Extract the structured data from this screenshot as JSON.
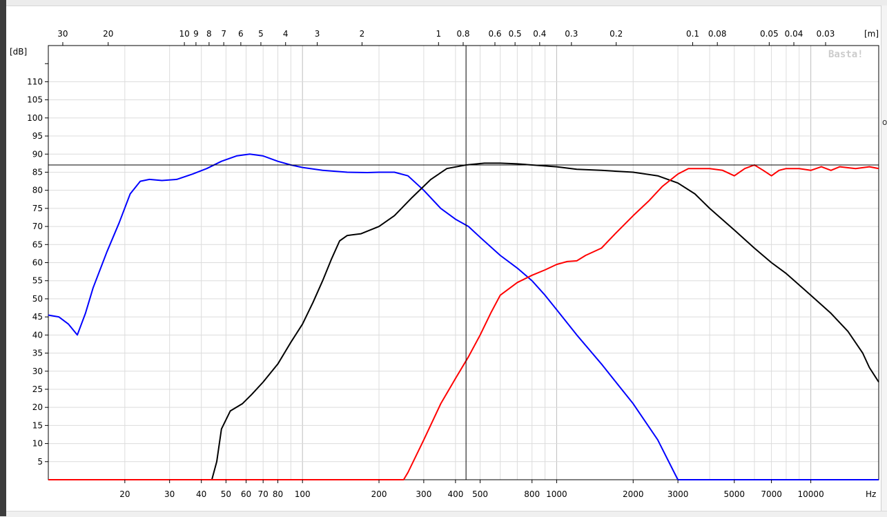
{
  "chart_data": {
    "type": "line",
    "title": "",
    "xlabel": "Hz",
    "ylabel": "[dB]",
    "top_axis_label": "[m]",
    "watermark": "Basta!",
    "x_scale": "log",
    "xlim": [
      10,
      18500
    ],
    "ylim": [
      0,
      120
    ],
    "grid": true,
    "y_ticks": [
      5,
      10,
      15,
      20,
      25,
      30,
      35,
      40,
      45,
      50,
      55,
      60,
      65,
      70,
      75,
      80,
      85,
      90,
      95,
      100,
      105,
      110
    ],
    "x_tick_labels": [
      {
        "v": 20,
        "t": "20"
      },
      {
        "v": 30,
        "t": "30"
      },
      {
        "v": 40,
        "t": "40"
      },
      {
        "v": 50,
        "t": "50"
      },
      {
        "v": 60,
        "t": "60"
      },
      {
        "v": 70,
        "t": "70"
      },
      {
        "v": 80,
        "t": "80"
      },
      {
        "v": 100,
        "t": "100"
      },
      {
        "v": 200,
        "t": "200"
      },
      {
        "v": 300,
        "t": "300"
      },
      {
        "v": 400,
        "t": "400"
      },
      {
        "v": 500,
        "t": "500"
      },
      {
        "v": 800,
        "t": "800"
      },
      {
        "v": 1000,
        "t": "1000"
      },
      {
        "v": 2000,
        "t": "2000"
      },
      {
        "v": 3000,
        "t": "3000"
      },
      {
        "v": 5000,
        "t": "5000"
      },
      {
        "v": 7000,
        "t": "7000"
      },
      {
        "v": 10000,
        "t": "10000"
      }
    ],
    "top_ticks": [
      {
        "t": "30",
        "f": 11.4
      },
      {
        "t": "20",
        "f": 17.2
      },
      {
        "t": "10",
        "f": 34.3
      },
      {
        "t": "9",
        "f": 38.1
      },
      {
        "t": "8",
        "f": 42.9
      },
      {
        "t": "7",
        "f": 49
      },
      {
        "t": "6",
        "f": 57.2
      },
      {
        "t": "5",
        "f": 68.6
      },
      {
        "t": "4",
        "f": 85.8
      },
      {
        "t": "3",
        "f": 114.3
      },
      {
        "t": "2",
        "f": 171.5
      },
      {
        "t": "1",
        "f": 343
      },
      {
        "t": "0.8",
        "f": 428.8
      },
      {
        "t": "0.6",
        "f": 571.7
      },
      {
        "t": "0.5",
        "f": 686
      },
      {
        "t": "0.4",
        "f": 857.5
      },
      {
        "t": "0.3",
        "f": 1143.3
      },
      {
        "t": "0.2",
        "f": 1715
      },
      {
        "t": "0.1",
        "f": 3430
      },
      {
        "t": "0.08",
        "f": 4287.5
      },
      {
        "t": "0.05",
        "f": 6860
      },
      {
        "t": "0.04",
        "f": 8575
      },
      {
        "t": "0.03",
        "f": 11433
      }
    ],
    "cursor": {
      "x": 440,
      "y": 87
    },
    "series": [
      {
        "color": "#0000ff",
        "points": [
          [
            10,
            45.5
          ],
          [
            11,
            45
          ],
          [
            12,
            43
          ],
          [
            13,
            40
          ],
          [
            14,
            46
          ],
          [
            15,
            53
          ],
          [
            17,
            63
          ],
          [
            19,
            71
          ],
          [
            21,
            79
          ],
          [
            23,
            82.5
          ],
          [
            25,
            83
          ],
          [
            28,
            82.7
          ],
          [
            32,
            83
          ],
          [
            37,
            84.5
          ],
          [
            42,
            86
          ],
          [
            48,
            88
          ],
          [
            55,
            89.5
          ],
          [
            62,
            90
          ],
          [
            70,
            89.5
          ],
          [
            80,
            88
          ],
          [
            90,
            87
          ],
          [
            100,
            86.3
          ],
          [
            120,
            85.5
          ],
          [
            150,
            85
          ],
          [
            180,
            84.9
          ],
          [
            200,
            85
          ],
          [
            230,
            85
          ],
          [
            260,
            84
          ],
          [
            300,
            80
          ],
          [
            350,
            75
          ],
          [
            400,
            72
          ],
          [
            450,
            70
          ],
          [
            500,
            67
          ],
          [
            600,
            62
          ],
          [
            700,
            58.5
          ],
          [
            800,
            55
          ],
          [
            900,
            51
          ],
          [
            1000,
            47
          ],
          [
            1200,
            40
          ],
          [
            1500,
            32
          ],
          [
            2000,
            21
          ],
          [
            2500,
            11
          ],
          [
            2900,
            2
          ],
          [
            3000,
            0
          ],
          [
            18500,
            0
          ]
        ]
      },
      {
        "color": "#000000",
        "points": [
          [
            10,
            0
          ],
          [
            44,
            0
          ],
          [
            46,
            5
          ],
          [
            48,
            14
          ],
          [
            52,
            19
          ],
          [
            58,
            21
          ],
          [
            63,
            23.5
          ],
          [
            70,
            27
          ],
          [
            80,
            32
          ],
          [
            90,
            38
          ],
          [
            100,
            43
          ],
          [
            110,
            49
          ],
          [
            120,
            55
          ],
          [
            130,
            61
          ],
          [
            140,
            66
          ],
          [
            150,
            67.5
          ],
          [
            170,
            68
          ],
          [
            200,
            70
          ],
          [
            230,
            73
          ],
          [
            270,
            78
          ],
          [
            320,
            83
          ],
          [
            370,
            86
          ],
          [
            440,
            87
          ],
          [
            520,
            87.5
          ],
          [
            600,
            87.5
          ],
          [
            700,
            87.3
          ],
          [
            800,
            87
          ],
          [
            1000,
            86.5
          ],
          [
            1200,
            85.8
          ],
          [
            1500,
            85.5
          ],
          [
            2000,
            85
          ],
          [
            2500,
            84
          ],
          [
            3000,
            82
          ],
          [
            3500,
            79
          ],
          [
            4000,
            75
          ],
          [
            5000,
            69
          ],
          [
            6000,
            64
          ],
          [
            7000,
            60
          ],
          [
            8000,
            57
          ],
          [
            10000,
            51
          ],
          [
            12000,
            46
          ],
          [
            14000,
            41
          ],
          [
            16000,
            35
          ],
          [
            17000,
            31
          ],
          [
            18500,
            27
          ]
        ]
      },
      {
        "color": "#ff0000",
        "points": [
          [
            10,
            0
          ],
          [
            250,
            0
          ],
          [
            260,
            2
          ],
          [
            300,
            11
          ],
          [
            350,
            21
          ],
          [
            400,
            28
          ],
          [
            450,
            34
          ],
          [
            500,
            40
          ],
          [
            550,
            46
          ],
          [
            600,
            51
          ],
          [
            700,
            54.5
          ],
          [
            800,
            56.5
          ],
          [
            900,
            58
          ],
          [
            1000,
            59.5
          ],
          [
            1100,
            60.3
          ],
          [
            1200,
            60.5
          ],
          [
            1300,
            62
          ],
          [
            1500,
            64
          ],
          [
            1700,
            68
          ],
          [
            2000,
            73
          ],
          [
            2300,
            77
          ],
          [
            2600,
            81
          ],
          [
            3000,
            84.5
          ],
          [
            3300,
            86
          ],
          [
            4000,
            86
          ],
          [
            4500,
            85.5
          ],
          [
            5000,
            84
          ],
          [
            5500,
            86
          ],
          [
            6000,
            87
          ],
          [
            6500,
            85.5
          ],
          [
            7000,
            84
          ],
          [
            7500,
            85.5
          ],
          [
            8000,
            86
          ],
          [
            9000,
            86
          ],
          [
            10000,
            85.5
          ],
          [
            11000,
            86.5
          ],
          [
            12000,
            85.5
          ],
          [
            13000,
            86.5
          ],
          [
            15000,
            86
          ],
          [
            17000,
            86.5
          ],
          [
            18500,
            86
          ]
        ]
      }
    ]
  }
}
